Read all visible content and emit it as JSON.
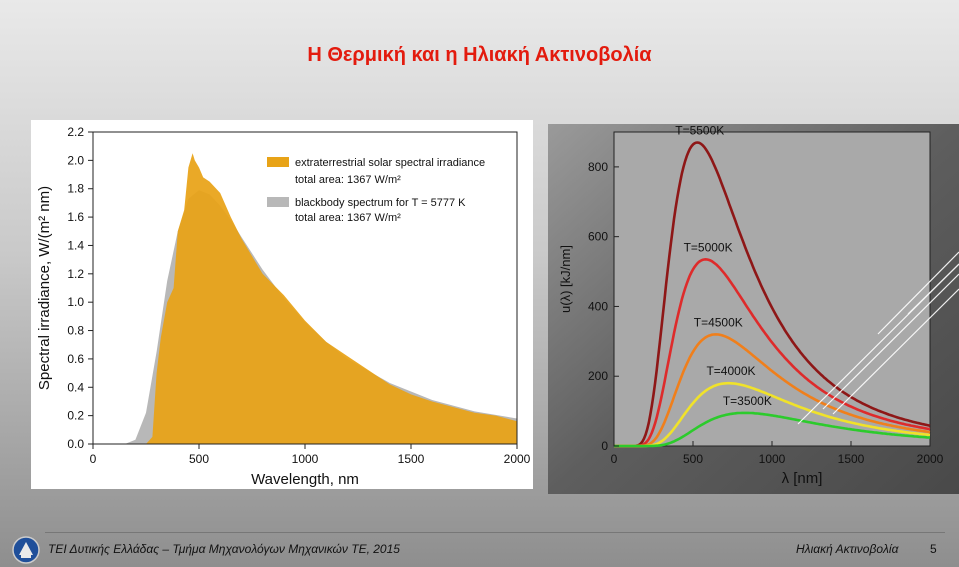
{
  "title": "Η Θερμική και η Ηλιακή Ακτινοβολία",
  "footer": {
    "left": "ΤΕΙ Δυτικής Ελλάδας – Τμήμα Μηχανολόγων Μηχανικών ΤΕ, 2015",
    "right": "Ηλιακή Ακτινοβολία",
    "page": "5"
  },
  "colors": {
    "title": "#e31b0e",
    "solar": "#e8a317",
    "blackbody": "#b8b8b8"
  },
  "chart_data": [
    {
      "type": "area",
      "xlabel": "Wavelength, nm",
      "ylabel": "Spectral irradiance, W/(m² nm)",
      "xlim": [
        0,
        2000
      ],
      "ylim": [
        0,
        2.2
      ],
      "xticks": [
        "0",
        "500",
        "1000",
        "1500",
        "2000"
      ],
      "yticks": [
        "0.0",
        "0.2",
        "0.4",
        "0.6",
        "0.8",
        "1.0",
        "1.2",
        "1.4",
        "1.6",
        "1.8",
        "2.0",
        "2.2"
      ],
      "legend_position": "top-right",
      "legend": [
        {
          "line1": "extraterrestrial solar spectral irradiance",
          "line2": "total area: 1367 W/m²"
        },
        {
          "line1": "blackbody spectrum for T = 5777 K",
          "line2": "total area: 1367 W/m²"
        }
      ],
      "series": [
        {
          "x": [
            150,
            200,
            250,
            300,
            350,
            400,
            450,
            500,
            550,
            600,
            650,
            700,
            800,
            900,
            1000,
            1100,
            1200,
            1400,
            1600,
            1800,
            2000
          ],
          "values": [
            0.0,
            0.03,
            0.22,
            0.65,
            1.15,
            1.5,
            1.73,
            1.79,
            1.76,
            1.68,
            1.58,
            1.46,
            1.23,
            1.03,
            0.86,
            0.72,
            0.6,
            0.43,
            0.31,
            0.23,
            0.18
          ]
        },
        {
          "x": [
            250,
            280,
            300,
            320,
            350,
            380,
            400,
            430,
            450,
            470,
            480,
            500,
            520,
            550,
            600,
            650,
            700,
            800,
            900,
            1000,
            1100,
            1200,
            1300,
            1400,
            1500,
            1600,
            1700,
            1800,
            1900,
            2000
          ],
          "values": [
            0.0,
            0.05,
            0.5,
            0.75,
            1.0,
            1.1,
            1.5,
            1.65,
            1.95,
            2.05,
            2.0,
            1.95,
            1.88,
            1.85,
            1.77,
            1.6,
            1.45,
            1.2,
            1.05,
            0.87,
            0.72,
            0.62,
            0.52,
            0.42,
            0.35,
            0.3,
            0.26,
            0.22,
            0.2,
            0.16
          ]
        }
      ]
    },
    {
      "type": "line",
      "xlabel": "λ [nm]",
      "ylabel": "u(λ) [kJ/nm]",
      "xlim": [
        0,
        2000
      ],
      "ylim": [
        0,
        900
      ],
      "xticks": [
        "0",
        "500",
        "1000",
        "1500",
        "2000"
      ],
      "yticks": [
        "0",
        "200",
        "400",
        "600",
        "800"
      ],
      "series": [
        {
          "name": "T=5500K",
          "temperature": 5500,
          "peak": 870,
          "color": "#8e1717"
        },
        {
          "name": "T=5000K",
          "temperature": 5000,
          "peak": 535,
          "color": "#de2b2b"
        },
        {
          "name": "T=4500K",
          "temperature": 4500,
          "peak": 320,
          "color": "#f07f1b"
        },
        {
          "name": "T=4000K",
          "temperature": 4000,
          "peak": 180,
          "color": "#f0e22a"
        },
        {
          "name": "T=3500K",
          "temperature": 3500,
          "peak": 95,
          "color": "#2ccb2c"
        }
      ]
    }
  ]
}
